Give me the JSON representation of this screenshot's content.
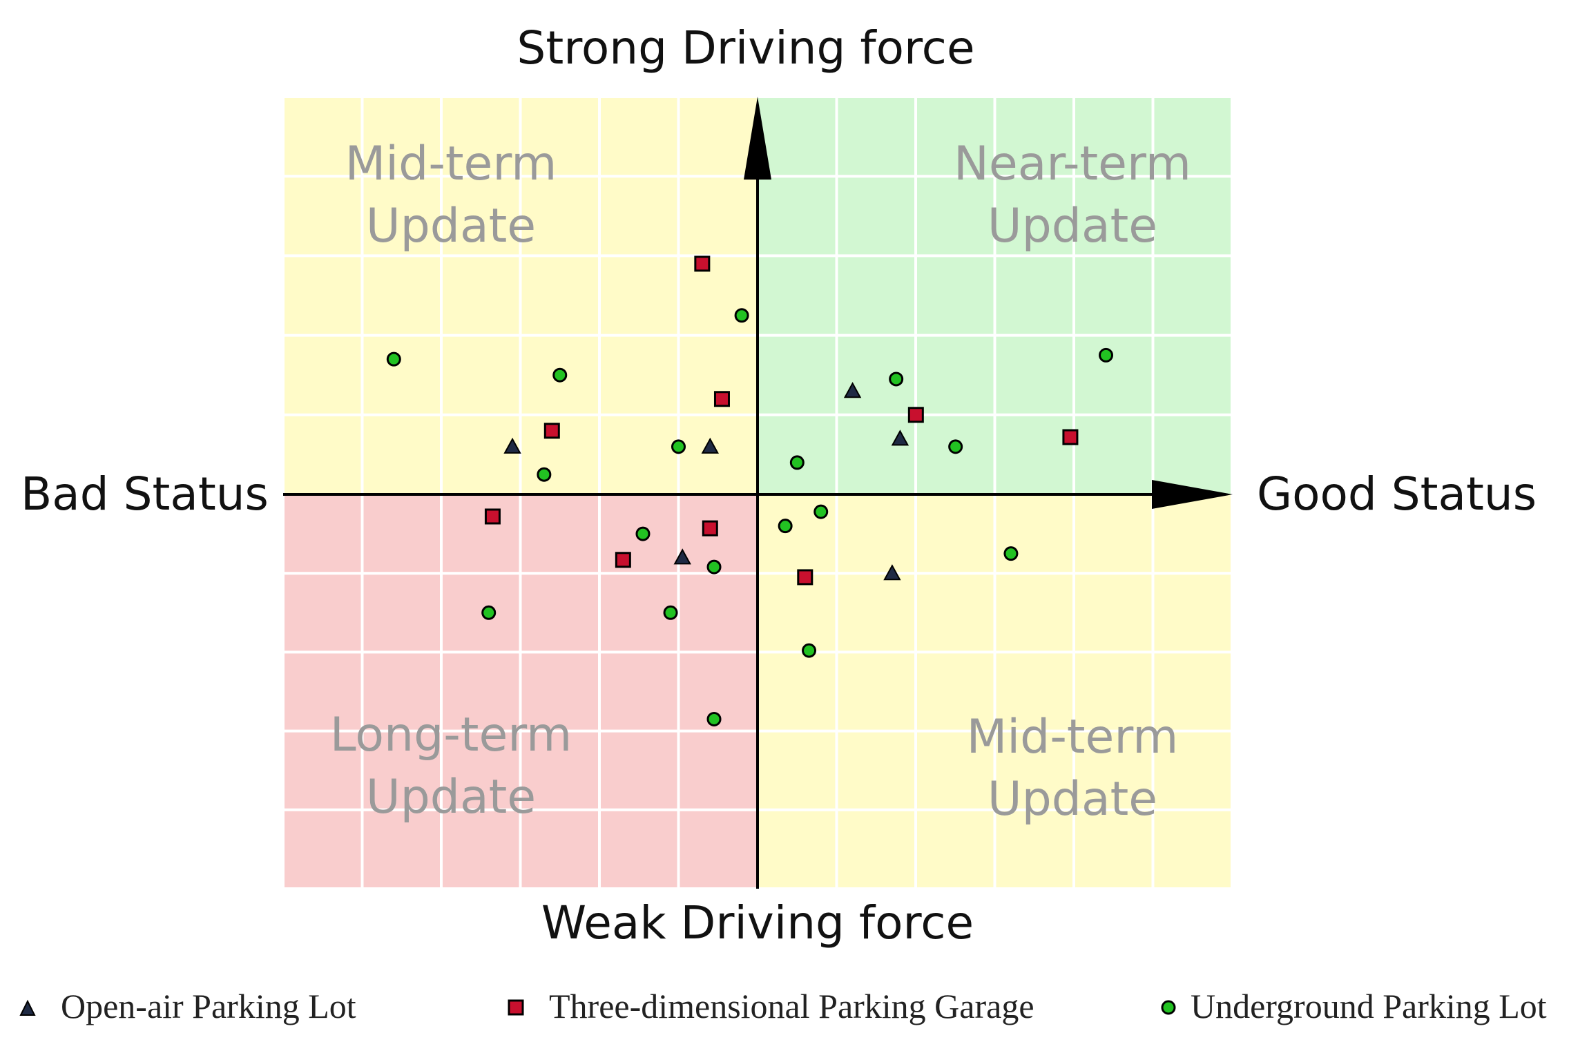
{
  "chart_data": {
    "type": "scatter",
    "axis_labels": {
      "top": "Strong Driving force",
      "bottom": "Weak Driving force",
      "left": "Bad Status",
      "right": "Good Status"
    },
    "xlim": [
      -6,
      6
    ],
    "ylim": [
      -5,
      5
    ],
    "grid": true,
    "quadrants": [
      {
        "id": "top-left",
        "lines": [
          "Mid-term",
          "Update"
        ],
        "color": "#fffbc8"
      },
      {
        "id": "top-right",
        "lines": [
          "Near-term",
          "Update"
        ],
        "color": "#d2f7d2"
      },
      {
        "id": "bottom-left",
        "lines": [
          "Long-term",
          "Update"
        ],
        "color": "#f9cdcd"
      },
      {
        "id": "bottom-right",
        "lines": [
          "Mid-term",
          "Update"
        ],
        "color": "#fffbc8"
      }
    ],
    "legend_position": "bottom",
    "series": [
      {
        "name": "Open-air Parking Lot",
        "marker": "triangle",
        "color": "#1f2a44",
        "points": [
          [
            -3.1,
            0.6
          ],
          [
            -0.6,
            0.6
          ],
          [
            1.2,
            1.3
          ],
          [
            1.8,
            0.7
          ],
          [
            -0.95,
            -0.8
          ],
          [
            1.7,
            -1.0
          ]
        ]
      },
      {
        "name": "Three-dimensional Parking Garage",
        "marker": "square",
        "color": "#c8102e",
        "points": [
          [
            -0.7,
            2.9
          ],
          [
            -0.45,
            1.2
          ],
          [
            -2.6,
            0.8
          ],
          [
            2.0,
            1.0
          ],
          [
            3.95,
            0.72
          ],
          [
            -3.35,
            -0.28
          ],
          [
            -0.6,
            -0.43
          ],
          [
            -1.7,
            -0.83
          ],
          [
            0.6,
            -1.05
          ]
        ]
      },
      {
        "name": "Underground Parking Lot",
        "marker": "circle",
        "color": "#22c222",
        "points": [
          [
            -0.2,
            2.25
          ],
          [
            -4.6,
            1.7
          ],
          [
            -2.5,
            1.5
          ],
          [
            4.4,
            1.75
          ],
          [
            1.75,
            1.45
          ],
          [
            -1.0,
            0.6
          ],
          [
            2.5,
            0.6
          ],
          [
            -2.7,
            0.25
          ],
          [
            0.5,
            0.4
          ],
          [
            0.35,
            -0.4
          ],
          [
            0.8,
            -0.22
          ],
          [
            -1.45,
            -0.5
          ],
          [
            -0.55,
            -0.92
          ],
          [
            3.2,
            -0.75
          ],
          [
            -3.4,
            -1.5
          ],
          [
            -1.1,
            -1.5
          ],
          [
            0.65,
            -1.98
          ],
          [
            -0.55,
            -2.85
          ]
        ]
      }
    ]
  }
}
